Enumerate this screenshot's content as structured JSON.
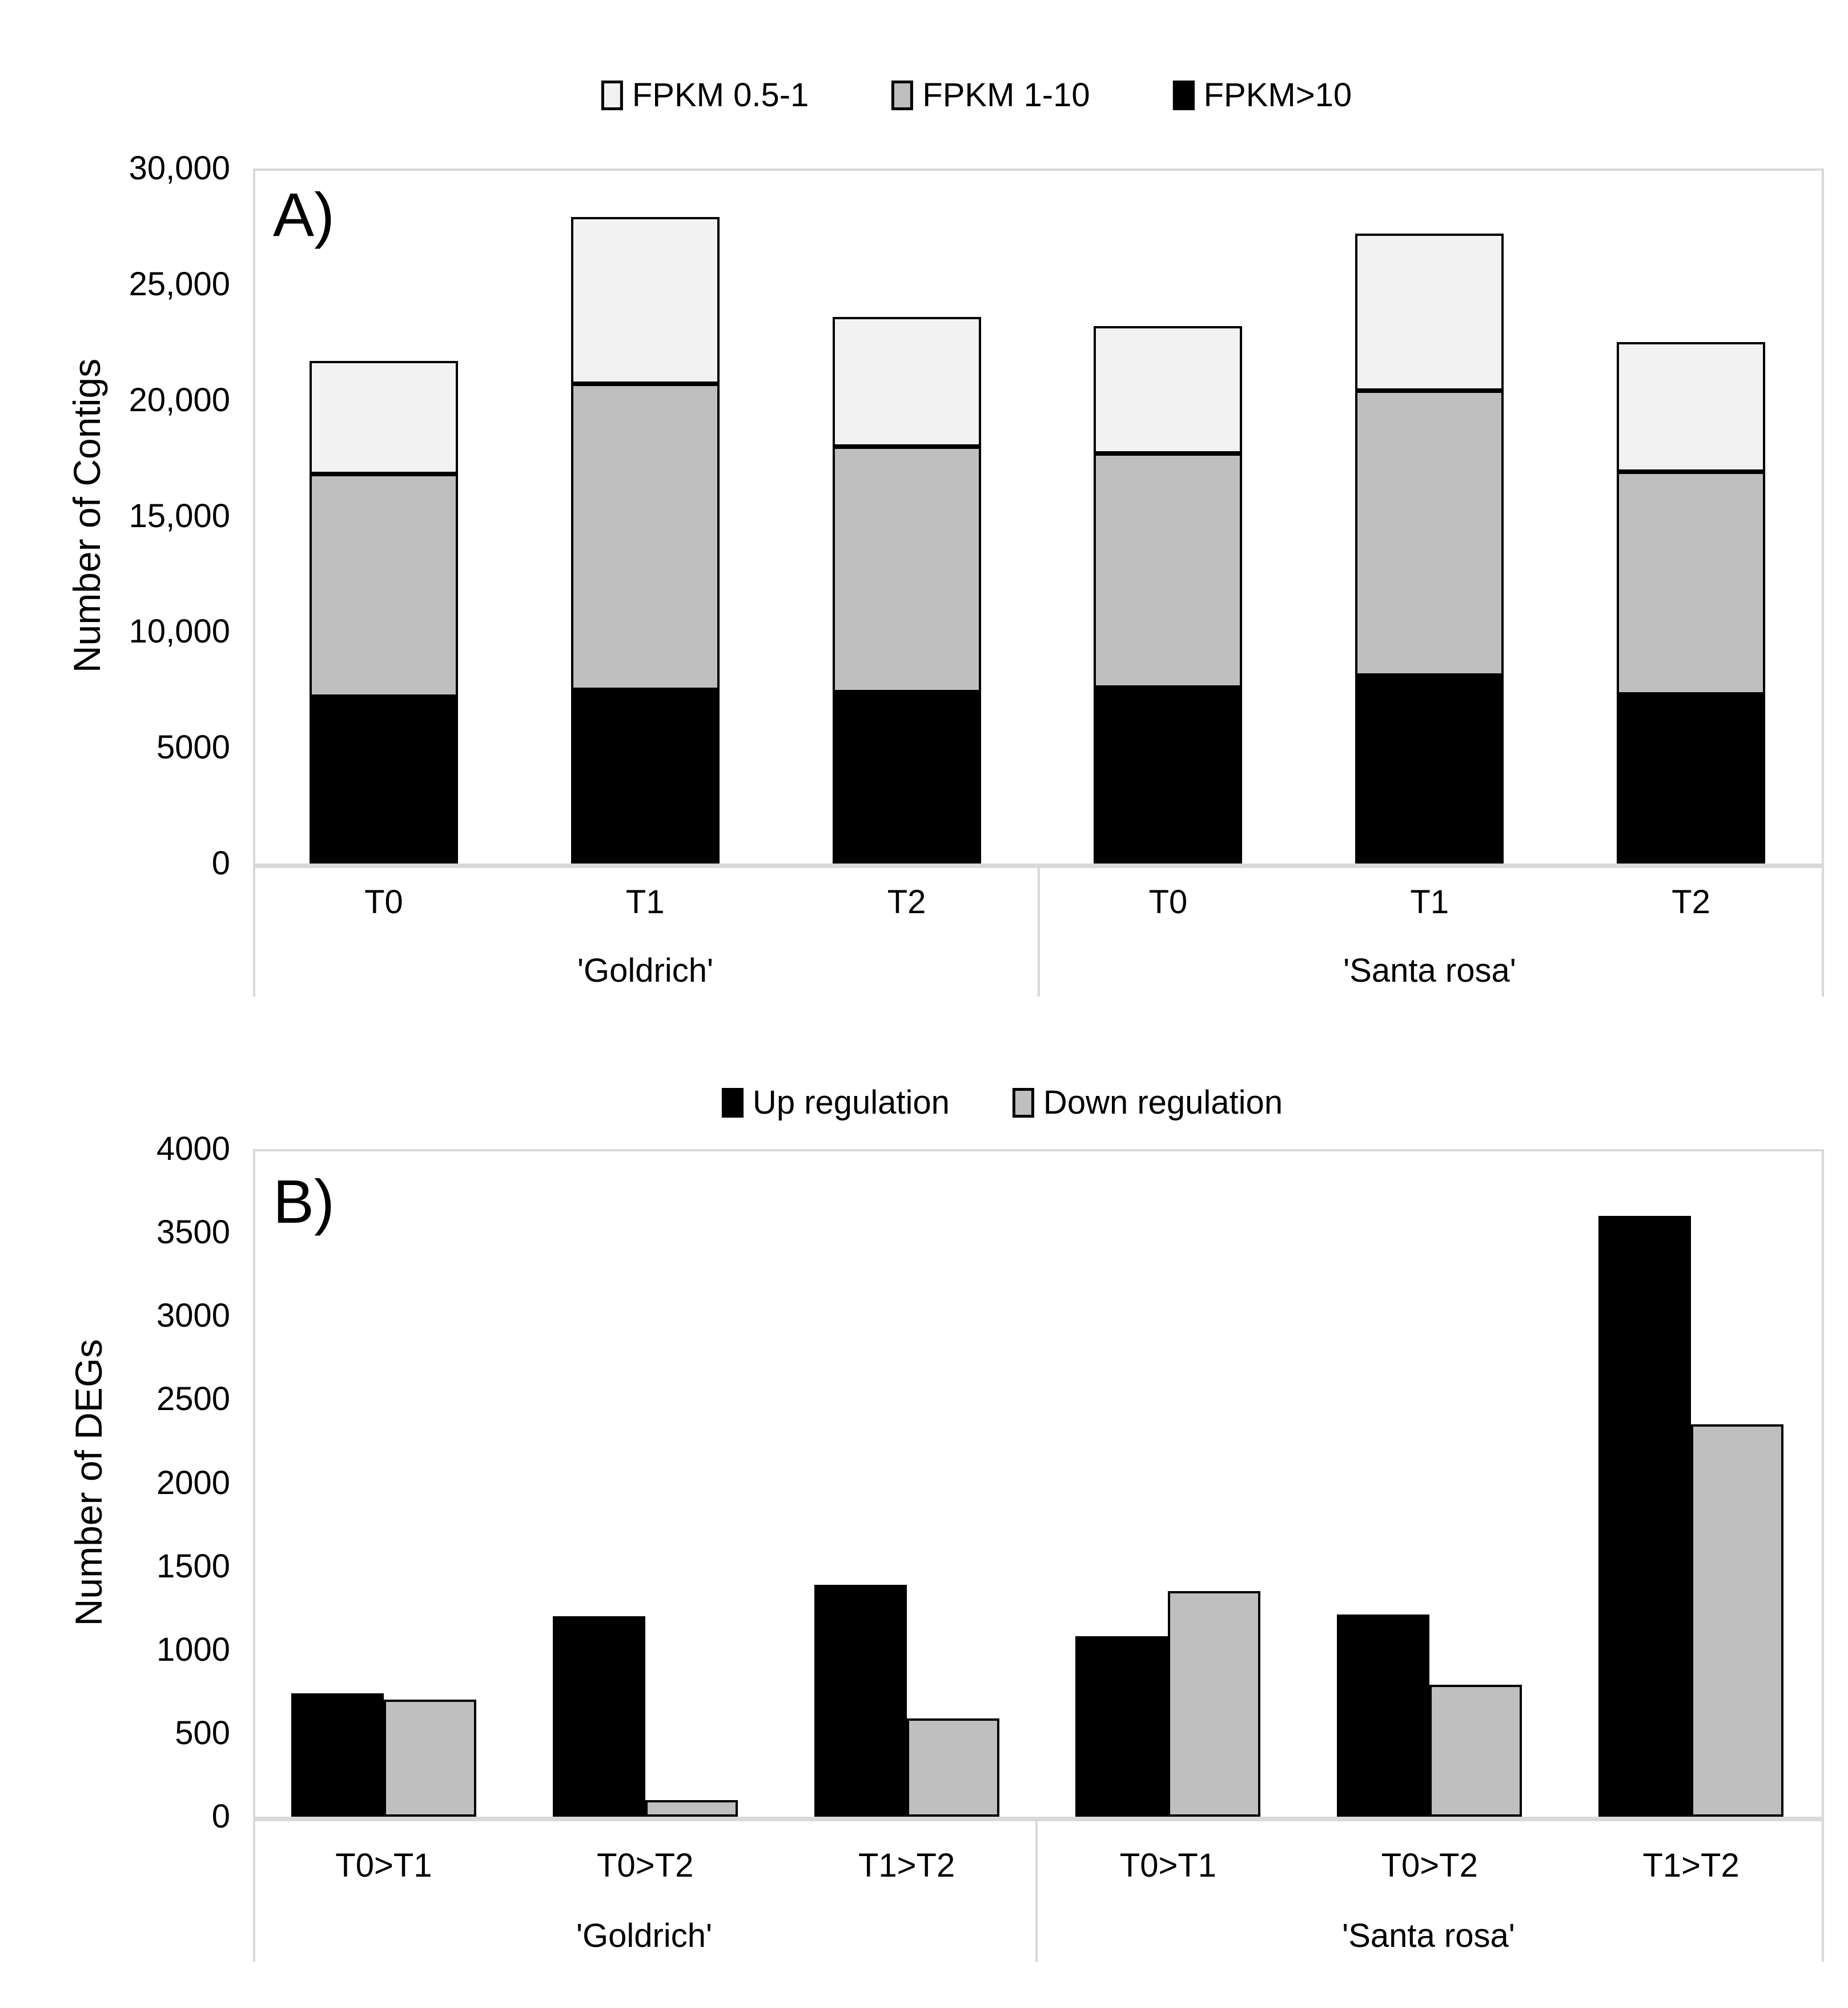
{
  "figure": {
    "background": "#ffffff",
    "axis_line_color": "#d9d9d9",
    "text_color": "#000000"
  },
  "chart_data": [
    {
      "panel": "A)",
      "type": "bar",
      "stacked": true,
      "title": "",
      "xlabel": "",
      "ylabel": "Number of Contigs",
      "ylim": [
        0,
        30000
      ],
      "grid": false,
      "legend_position": "top",
      "yticks": [
        {
          "v": 0,
          "label": "0"
        },
        {
          "v": 5000,
          "label": "5000"
        },
        {
          "v": 10000,
          "label": "10,000"
        },
        {
          "v": 15000,
          "label": "15,000"
        },
        {
          "v": 20000,
          "label": "20,000"
        },
        {
          "v": 25000,
          "label": "25,000"
        },
        {
          "v": 30000,
          "label": "30,000"
        }
      ],
      "groups": [
        {
          "label": "'Goldrich'",
          "categories": [
            "T0",
            "T1",
            "T2"
          ]
        },
        {
          "label": "'Santa rosa'",
          "categories": [
            "T0",
            "T1",
            "T2"
          ]
        }
      ],
      "series": [
        {
          "name": "FPKM 0.5-1",
          "color": "#f2f2f2",
          "values": [
            4900,
            7200,
            5600,
            5500,
            6800,
            5600
          ]
        },
        {
          "name": "FPKM 1-10",
          "color": "#bfbfbf",
          "values": [
            9600,
            13200,
            10600,
            10100,
            12300,
            9600
          ]
        },
        {
          "name": "FPKM>10",
          "color": "#000000",
          "values": [
            7200,
            7500,
            7400,
            7600,
            8100,
            7300
          ]
        }
      ],
      "stack_totals": [
        21700,
        27900,
        23600,
        23200,
        27200,
        22500
      ],
      "stack_order": "last-series-at-bottom"
    },
    {
      "panel": "B)",
      "type": "bar",
      "stacked": false,
      "title": "",
      "xlabel": "",
      "ylabel": "Number of DEGs",
      "ylim": [
        0,
        4000
      ],
      "grid": false,
      "legend_position": "top",
      "yticks": [
        {
          "v": 0,
          "label": "0"
        },
        {
          "v": 500,
          "label": "500"
        },
        {
          "v": 1000,
          "label": "1000"
        },
        {
          "v": 1500,
          "label": "1500"
        },
        {
          "v": 2000,
          "label": "2000"
        },
        {
          "v": 2500,
          "label": "2500"
        },
        {
          "v": 3000,
          "label": "3000"
        },
        {
          "v": 3500,
          "label": "3500"
        },
        {
          "v": 4000,
          "label": "4000"
        }
      ],
      "groups": [
        {
          "label": "'Goldrich'",
          "categories": [
            "T0>T1",
            "T0>T2",
            "T1>T2"
          ]
        },
        {
          "label": "'Santa rosa'",
          "categories": [
            "T0>T1",
            "T0>T2",
            "T1>T2"
          ]
        }
      ],
      "series": [
        {
          "name": "Up regulation",
          "color": "#000000",
          "values": [
            740,
            1200,
            1390,
            1080,
            1210,
            3600
          ]
        },
        {
          "name": "Down regulation",
          "color": "#bfbfbf",
          "values": [
            700,
            100,
            590,
            1350,
            790,
            2350
          ]
        }
      ]
    }
  ]
}
